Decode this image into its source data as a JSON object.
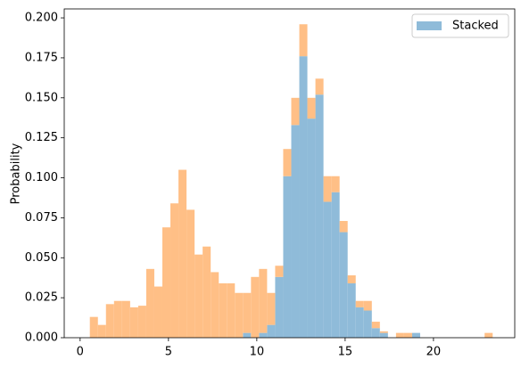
{
  "chart_data": {
    "type": "histogram",
    "stacked": true,
    "ylabel": "Probability",
    "bins": [
      0.55,
      1.006,
      1.462,
      1.918,
      2.374,
      2.83,
      3.286,
      3.742,
      4.198,
      4.654,
      5.11,
      5.566,
      6.022,
      6.478,
      6.934,
      7.39,
      7.846,
      8.302,
      8.758,
      9.214,
      9.67,
      10.126,
      10.582,
      11.038,
      11.494,
      11.95,
      12.406,
      12.862,
      13.318,
      13.774,
      14.23,
      14.686,
      15.142,
      15.598,
      16.054,
      16.51,
      16.966,
      17.422,
      17.878,
      18.334,
      18.79,
      19.246,
      19.702,
      20.158,
      20.614,
      21.07,
      21.526,
      21.982,
      22.438,
      22.894,
      23.35
    ],
    "series": [
      {
        "name": "Stacked",
        "color": "#8fbbd9",
        "values": [
          0,
          0,
          0,
          0,
          0,
          0,
          0,
          0,
          0,
          0,
          0,
          0,
          0,
          0,
          0,
          0,
          0,
          0,
          0,
          0.003,
          0,
          0.003,
          0.008,
          0.038,
          0.101,
          0.133,
          0.176,
          0.137,
          0.152,
          0.085,
          0.091,
          0.066,
          0.034,
          0.019,
          0.017,
          0.006,
          0.003,
          0,
          0,
          0,
          0.003,
          0,
          0,
          0,
          0,
          0,
          0,
          0,
          0,
          0
        ]
      },
      {
        "color": "#ffbf86",
        "values": [
          0.013,
          0.008,
          0.021,
          0.023,
          0.023,
          0.019,
          0.02,
          0.043,
          0.032,
          0.069,
          0.084,
          0.105,
          0.08,
          0.052,
          0.057,
          0.041,
          0.034,
          0.034,
          0.028,
          0.025,
          0.038,
          0.04,
          0.02,
          0.007,
          0.017,
          0.017,
          0.02,
          0.013,
          0.01,
          0.016,
          0.01,
          0.007,
          0.005,
          0.004,
          0.006,
          0.004,
          0.001,
          0,
          0.003,
          0.003,
          0,
          0,
          0,
          0,
          0,
          0,
          0,
          0,
          0,
          0.003
        ]
      }
    ],
    "xlim": [
      -0.9,
      24.6
    ],
    "ylim": [
      0,
      0.2056
    ],
    "xticks": [
      0,
      5,
      10,
      15,
      20
    ],
    "yticks": [
      {
        "value": 0,
        "label": "0.000"
      },
      {
        "value": 0.025,
        "label": "0.025"
      },
      {
        "value": 0.05,
        "label": "0.050"
      },
      {
        "value": 0.075,
        "label": "0.075"
      },
      {
        "value": 0.1,
        "label": "0.100"
      },
      {
        "value": 0.125,
        "label": "0.125"
      },
      {
        "value": 0.15,
        "label": "0.150"
      },
      {
        "value": 0.175,
        "label": "0.175"
      },
      {
        "value": 0.2,
        "label": "0.200"
      }
    ],
    "legend": "upper right"
  }
}
